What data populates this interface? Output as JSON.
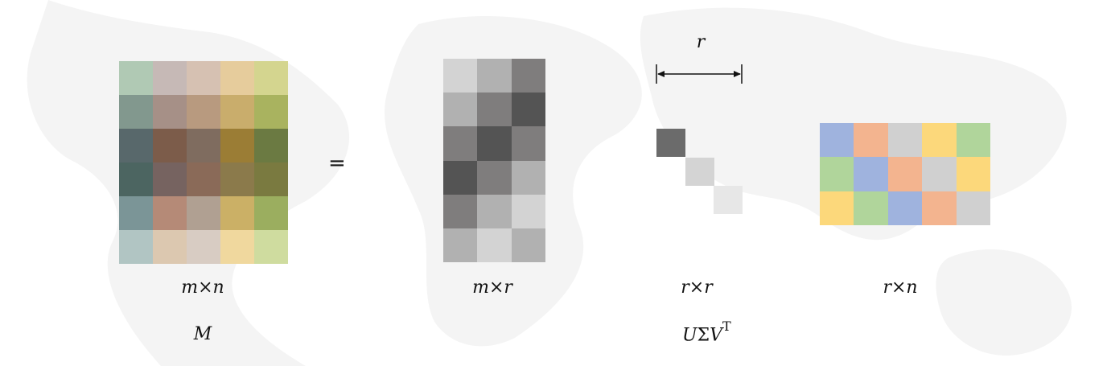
{
  "labels": {
    "m_dims": "m×n",
    "u_dims": "m×r",
    "sigma_dims": "r×r",
    "vt_dims": "r×n",
    "m_name": "M",
    "equals": "=",
    "rank": "r",
    "usv_u": "U",
    "usv_sigma": "Σ",
    "usv_v": "V",
    "usv_t": "T"
  },
  "matrices": {
    "m": {
      "rows": [
        [
          "#b0c9b4",
          "#c6b9b6",
          "#d6c1b2",
          "#e6cc9c",
          "#d4d58f"
        ],
        [
          "#82988e",
          "#a69087",
          "#b89a7f",
          "#c9ad6c",
          "#a9b35f"
        ],
        [
          "#58686b",
          "#7c5c4a",
          "#7f6c5f",
          "#9b7d35",
          "#6b7a42"
        ],
        [
          "#4c6561",
          "#766360",
          "#8a6a58",
          "#8b7a4b",
          "#7a7a40"
        ],
        [
          "#7b9597",
          "#b58a77",
          "#b0a092",
          "#cbb066",
          "#9bae5f"
        ],
        [
          "#b1c5c3",
          "#dcc8b0",
          "#d8ccc3",
          "#f0d89e",
          "#cfdc9f"
        ]
      ]
    },
    "u": {
      "rows": [
        [
          "#d3d3d3",
          "#b1b1b1",
          "#7f7d7d"
        ],
        [
          "#b1b1b1",
          "#7f7d7d",
          "#545454"
        ],
        [
          "#7f7d7d",
          "#545454",
          "#7f7d7d"
        ],
        [
          "#545454",
          "#7f7d7d",
          "#b1b1b1"
        ],
        [
          "#7f7d7d",
          "#b1b1b1",
          "#d3d3d3"
        ],
        [
          "#b1b1b1",
          "#d3d3d3",
          "#b1b1b1"
        ]
      ]
    },
    "sigma": {
      "diagonal": [
        "#6b6b6b",
        "#d4d4d4",
        "#e7e7e7"
      ]
    },
    "vt": {
      "rows": [
        [
          "#9fb3de",
          "#f3b48f",
          "#d0d0d0",
          "#fcd87b",
          "#b0d59b"
        ],
        [
          "#b0d59b",
          "#9fb3de",
          "#f3b48f",
          "#d0d0d0",
          "#fcd87b"
        ],
        [
          "#fcd87b",
          "#b0d59b",
          "#9fb3de",
          "#f3b48f",
          "#d0d0d0"
        ]
      ]
    }
  }
}
